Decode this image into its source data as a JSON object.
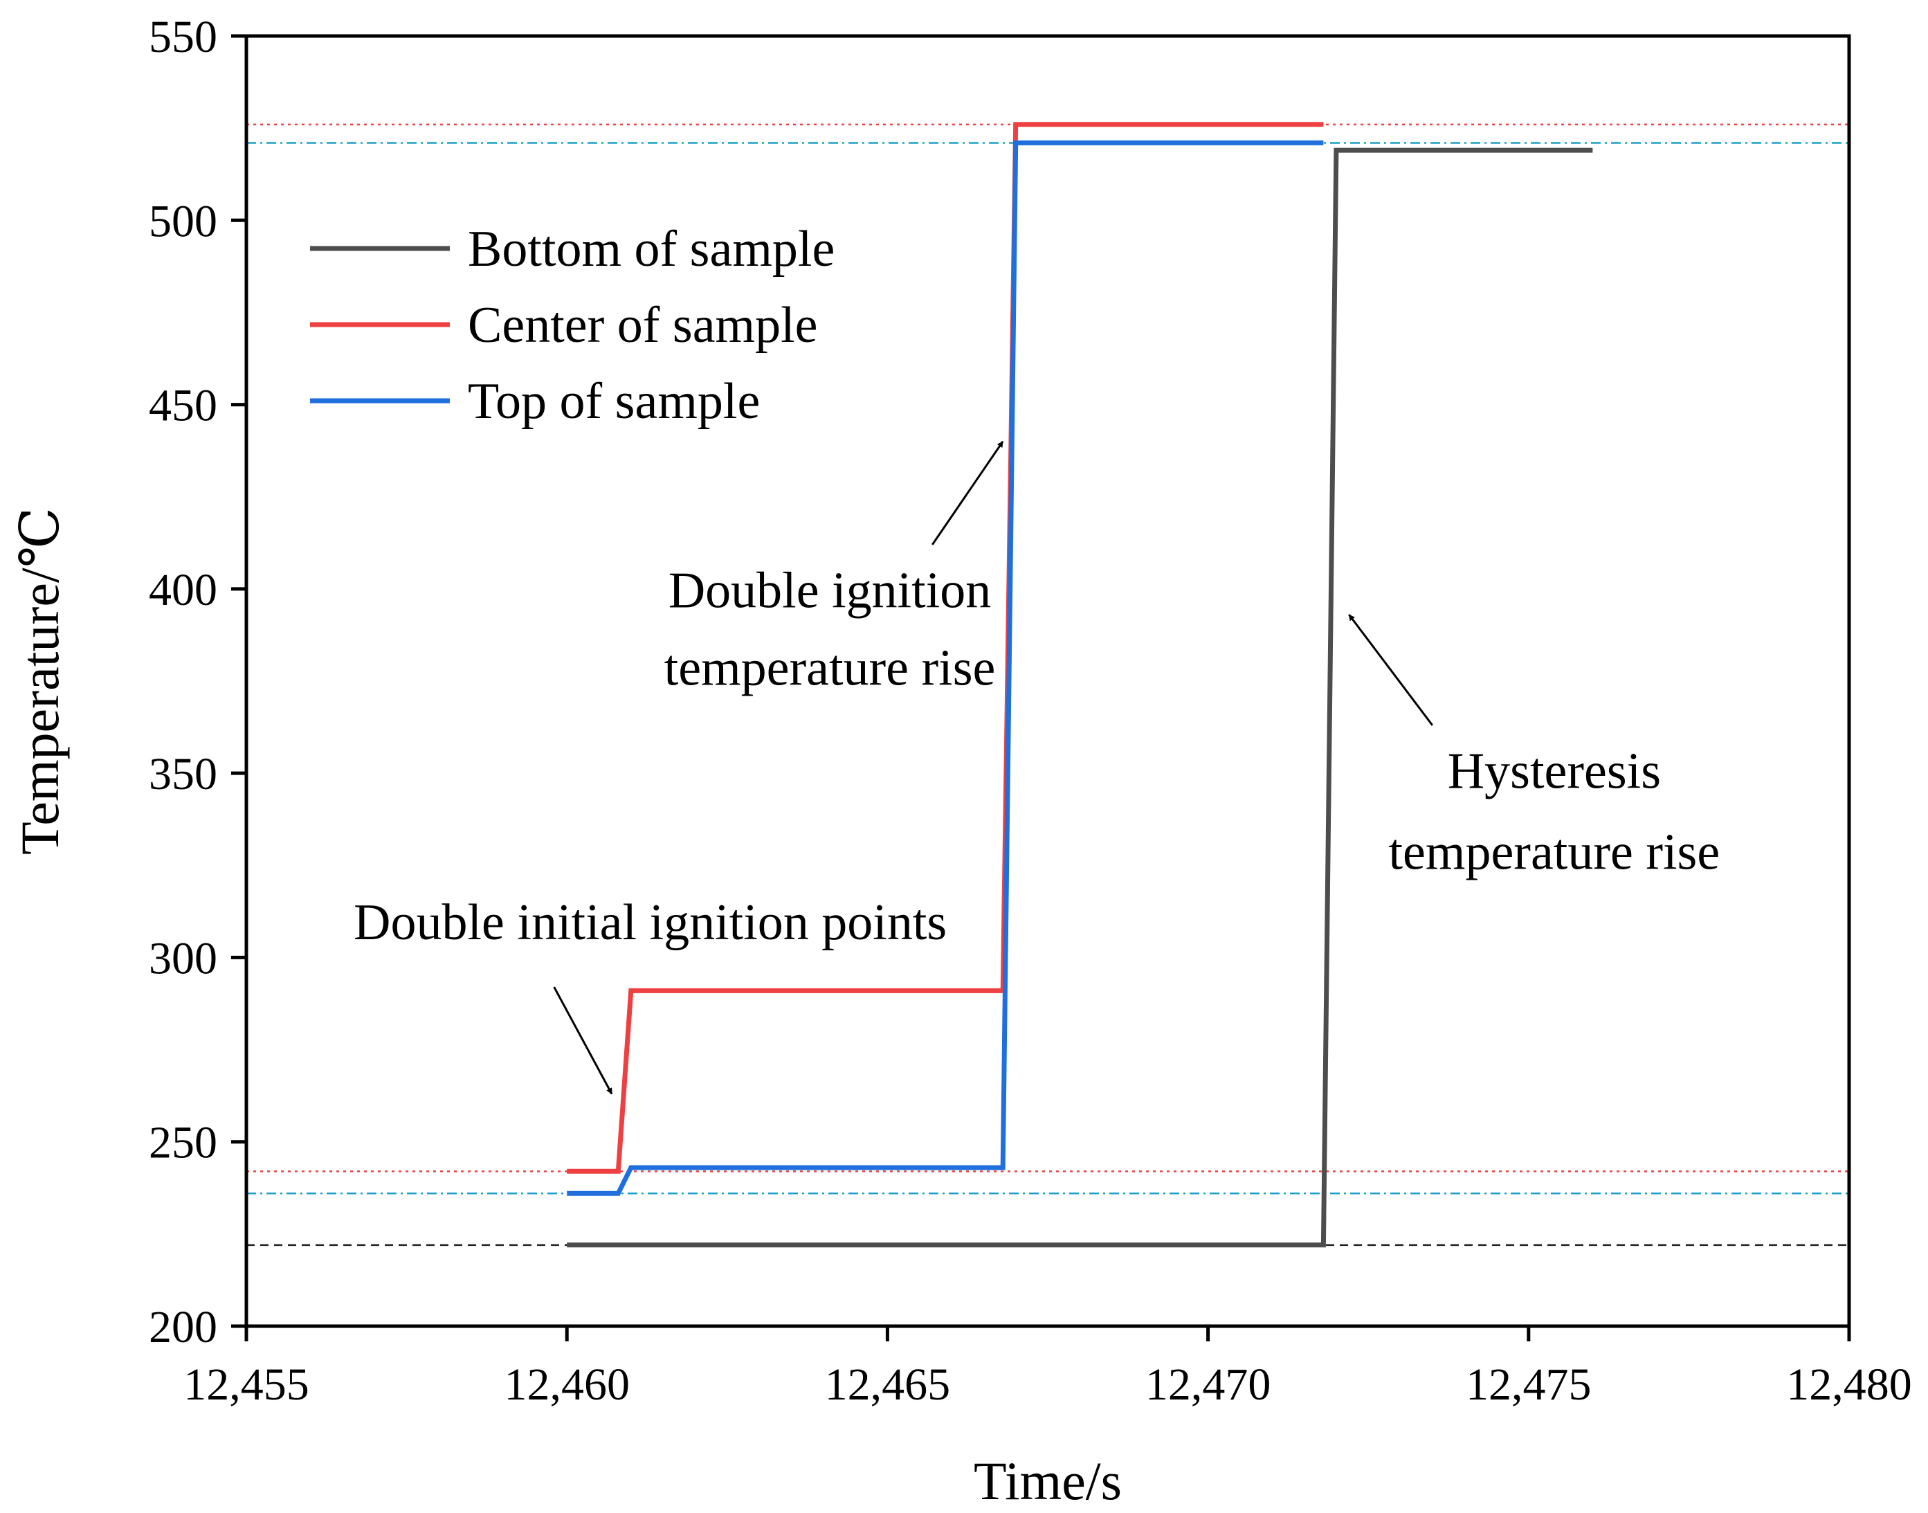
{
  "chart_data": {
    "type": "line",
    "xlabel": "Time/s",
    "ylabel": "Temperature/℃",
    "xlim": [
      12455,
      12480
    ],
    "ylim": [
      200,
      550
    ],
    "xticks": [
      12455,
      12460,
      12465,
      12470,
      12475,
      12480
    ],
    "xtick_labels": [
      "12,455",
      "12,460",
      "12,465",
      "12,470",
      "12,475",
      "12,480"
    ],
    "yticks": [
      200,
      250,
      300,
      350,
      400,
      450,
      500,
      550
    ],
    "ytick_labels": [
      "200",
      "250",
      "300",
      "350",
      "400",
      "450",
      "500",
      "550"
    ],
    "legend_position": "top-left",
    "series": [
      {
        "name": "Bottom of sample",
        "color": "#4d4d4d",
        "points": [
          [
            12460,
            222
          ],
          [
            12471.8,
            222
          ],
          [
            12472.0,
            519
          ],
          [
            12476.0,
            519
          ]
        ]
      },
      {
        "name": "Center of sample",
        "color": "#ee4040",
        "points": [
          [
            12460,
            242
          ],
          [
            12460.8,
            242
          ],
          [
            12461.0,
            291
          ],
          [
            12466.8,
            291
          ],
          [
            12467.0,
            526
          ],
          [
            12471.8,
            526
          ]
        ]
      },
      {
        "name": "Top of sample",
        "color": "#1f6fdc",
        "points": [
          [
            12460,
            236
          ],
          [
            12460.8,
            236
          ],
          [
            12461.0,
            243
          ],
          [
            12466.8,
            243
          ],
          [
            12467.0,
            521
          ],
          [
            12471.8,
            521
          ]
        ]
      }
    ],
    "reference_lines": [
      {
        "y": 526,
        "color": "#ee4040",
        "style": "dotted"
      },
      {
        "y": 521,
        "color": "#1aa0c8",
        "style": "dash-dot"
      },
      {
        "y": 242,
        "color": "#ee4040",
        "style": "dotted"
      },
      {
        "y": 236,
        "color": "#1aa0c8",
        "style": "dash-dot"
      },
      {
        "y": 222,
        "color": "#222222",
        "style": "dashed"
      }
    ],
    "annotations": [
      {
        "lines": [
          "Double ignition",
          "temperature rise"
        ],
        "text_x": 12464.1,
        "text_y": [
          395,
          374
        ],
        "arrow_from": [
          12465.7,
          412
        ],
        "arrow_to": [
          12466.8,
          440
        ]
      },
      {
        "lines": [
          "Double initial ignition points"
        ],
        "text_x": 12461.3,
        "text_y": [
          305
        ],
        "arrow_from": [
          12459.8,
          292
        ],
        "arrow_to": [
          12460.7,
          263
        ]
      },
      {
        "lines": [
          "Hysteresis",
          "temperature rise"
        ],
        "text_x": 12475.4,
        "text_y": [
          346,
          324
        ],
        "arrow_from": [
          12473.5,
          363
        ],
        "arrow_to": [
          12472.2,
          393
        ]
      }
    ]
  }
}
